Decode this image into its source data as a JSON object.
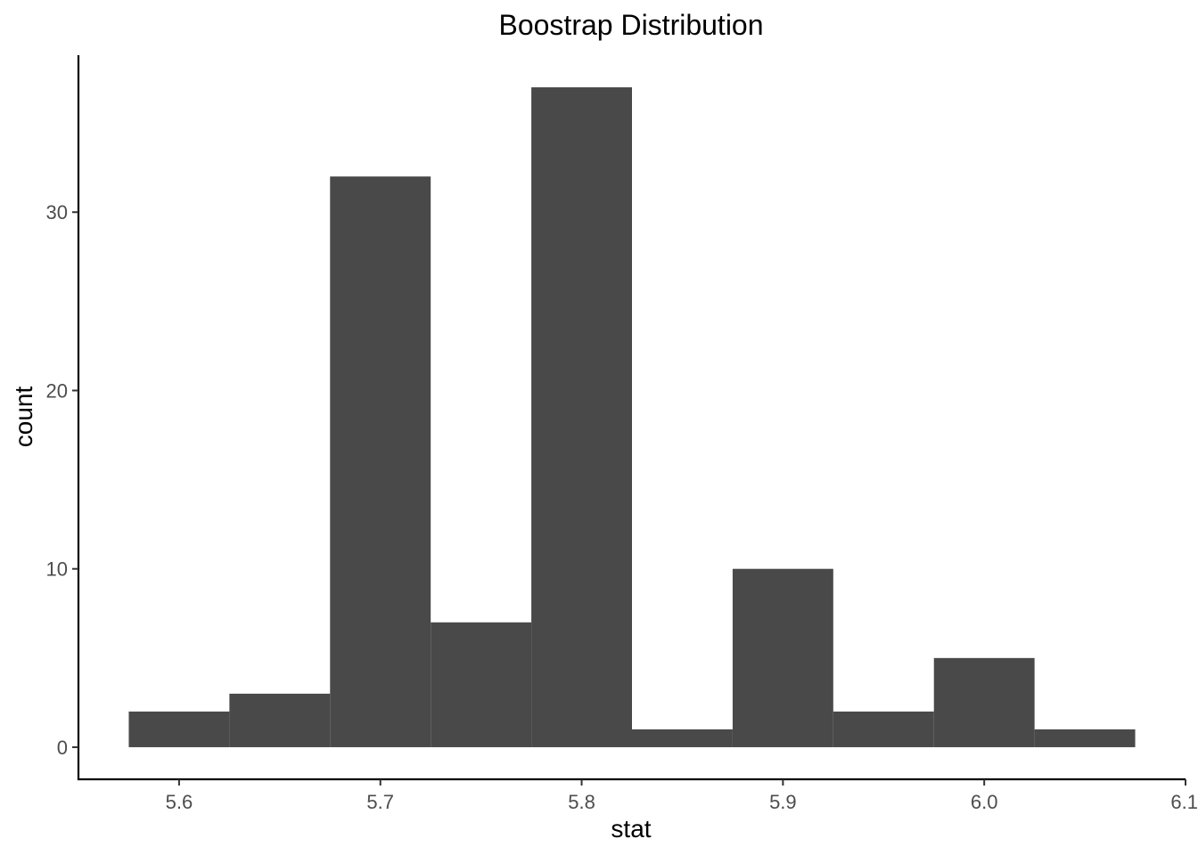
{
  "chart_data": {
    "type": "bar",
    "title": "Boostrap Distribution",
    "xlabel": "stat",
    "ylabel": "count",
    "bar_color": "#494949",
    "bin_width": 0.05,
    "bin_centers": [
      5.6,
      5.65,
      5.7,
      5.75,
      5.8,
      5.85,
      5.9,
      5.95,
      6.0,
      6.05
    ],
    "values": [
      2,
      3,
      32,
      7,
      37,
      1,
      10,
      2,
      5,
      1
    ],
    "xlim": [
      5.55,
      6.1
    ],
    "ylim": [
      -1.8,
      38.8
    ],
    "x_ticks": [
      5.6,
      5.7,
      5.8,
      5.9,
      6.0,
      6.1
    ],
    "x_tick_labels": [
      "5.6",
      "5.7",
      "5.8",
      "5.9",
      "6.0",
      "6.1"
    ],
    "y_ticks": [
      0,
      10,
      20,
      30
    ],
    "y_tick_labels": [
      "0",
      "10",
      "20",
      "30"
    ],
    "grid": false,
    "legend": "none"
  }
}
